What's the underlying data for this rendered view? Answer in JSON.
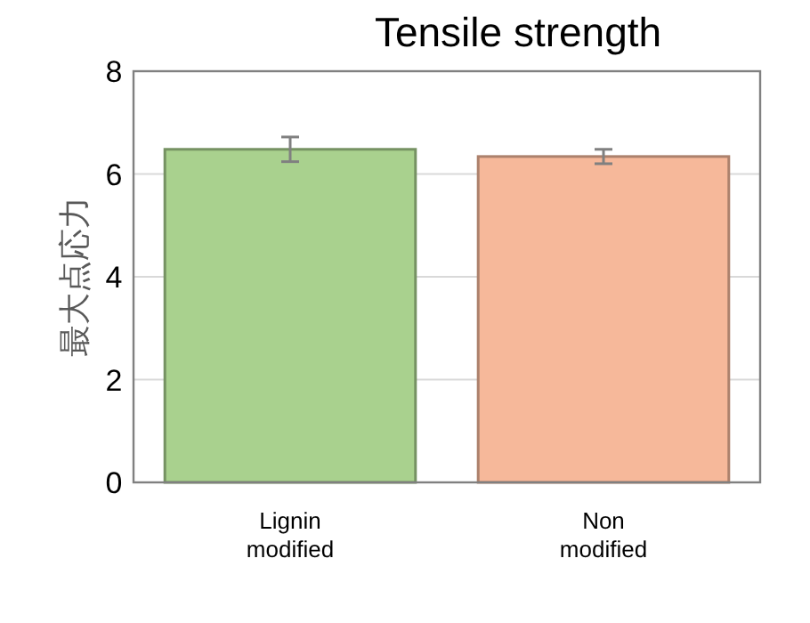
{
  "chart_data": {
    "type": "bar",
    "title": "Tensile strength",
    "ylabel": "最大点応力",
    "categories": [
      "Lignin\nmodified",
      "Non\nmodified"
    ],
    "values": [
      6.48,
      6.34
    ],
    "errors": [
      0.24,
      0.14
    ],
    "colors": [
      "#a9d18e",
      "#f6b89a"
    ],
    "ylim": [
      0,
      8
    ],
    "yticks": [
      0,
      2,
      4,
      6,
      8
    ],
    "grid": "y"
  }
}
